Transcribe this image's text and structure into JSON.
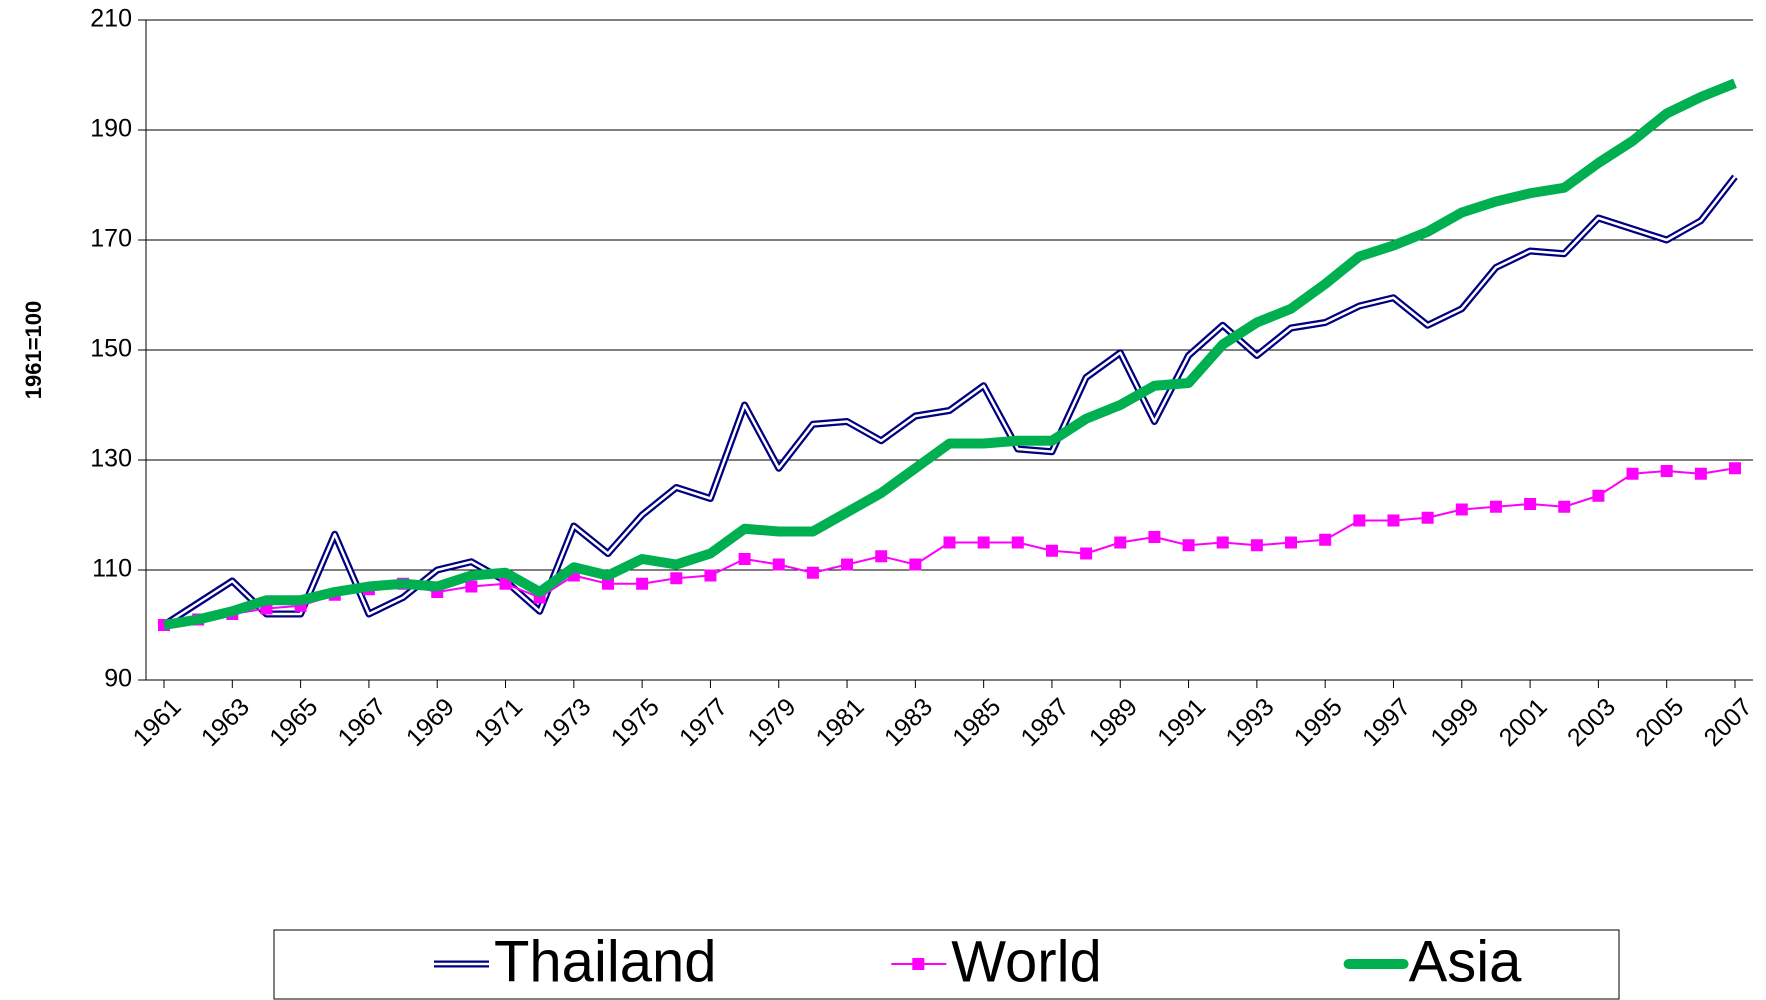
{
  "chart_data": {
    "type": "line",
    "y_label": "1961=100",
    "x": [
      1961,
      1962,
      1963,
      1964,
      1965,
      1966,
      1967,
      1968,
      1969,
      1970,
      1971,
      1972,
      1973,
      1974,
      1975,
      1976,
      1977,
      1978,
      1979,
      1980,
      1981,
      1982,
      1983,
      1984,
      1985,
      1986,
      1987,
      1988,
      1989,
      1990,
      1991,
      1992,
      1993,
      1994,
      1995,
      1996,
      1997,
      1998,
      1999,
      2000,
      2001,
      2002,
      2003,
      2004,
      2005,
      2006,
      2007
    ],
    "xlim": [
      1961,
      2007
    ],
    "xticks": [
      1961,
      1963,
      1965,
      1967,
      1969,
      1971,
      1973,
      1975,
      1977,
      1979,
      1981,
      1983,
      1985,
      1987,
      1989,
      1991,
      1993,
      1995,
      1997,
      1999,
      2001,
      2003,
      2005,
      2007
    ],
    "ylim": [
      90,
      210
    ],
    "yticks": [
      90,
      110,
      130,
      150,
      170,
      190,
      210
    ],
    "grid": true,
    "legend": "bottom",
    "series": [
      {
        "name": "Thailand",
        "color": "#000080",
        "style": "double",
        "values": [
          100,
          104,
          108,
          102,
          102,
          116.5,
          102,
          105,
          110,
          111.5,
          108,
          102.5,
          118,
          113,
          120,
          125,
          123,
          140,
          128.5,
          136.5,
          137,
          133.5,
          138,
          139,
          143.5,
          132,
          131.5,
          145,
          149.5,
          137,
          149,
          154.5,
          149,
          154,
          155,
          158,
          159.5,
          154.5,
          157.5,
          165,
          168,
          167.5,
          174,
          172,
          170,
          173.5,
          181.5
        ]
      },
      {
        "name": "World",
        "color": "#ff00ff",
        "style": "marker",
        "values": [
          100,
          101,
          102,
          103,
          103.5,
          105.5,
          106.5,
          107.5,
          106,
          107,
          107.5,
          105,
          109,
          107.5,
          107.5,
          108.5,
          109,
          112,
          111,
          109.5,
          111,
          112.5,
          111,
          115,
          115,
          115,
          113.5,
          113,
          115,
          116,
          114.5,
          115,
          114.5,
          115,
          115.5,
          119,
          119,
          119.5,
          121,
          121.5,
          122,
          121.5,
          123.5,
          127.5,
          128,
          127.5,
          128.5
        ]
      },
      {
        "name": "Asia",
        "color": "#00b050",
        "style": "thick",
        "values": [
          100,
          101,
          102.5,
          104.5,
          104.5,
          106,
          107,
          107.5,
          107,
          109,
          109.5,
          106,
          110.5,
          109,
          112,
          111,
          113,
          117.5,
          117,
          117,
          120.5,
          124,
          128.5,
          133,
          133,
          133.5,
          133.5,
          137.5,
          140,
          143.5,
          144,
          151,
          155,
          157.5,
          162,
          167,
          169,
          171.5,
          175,
          177,
          178.5,
          179.5,
          184,
          188,
          193,
          196,
          198.5
        ]
      }
    ]
  }
}
